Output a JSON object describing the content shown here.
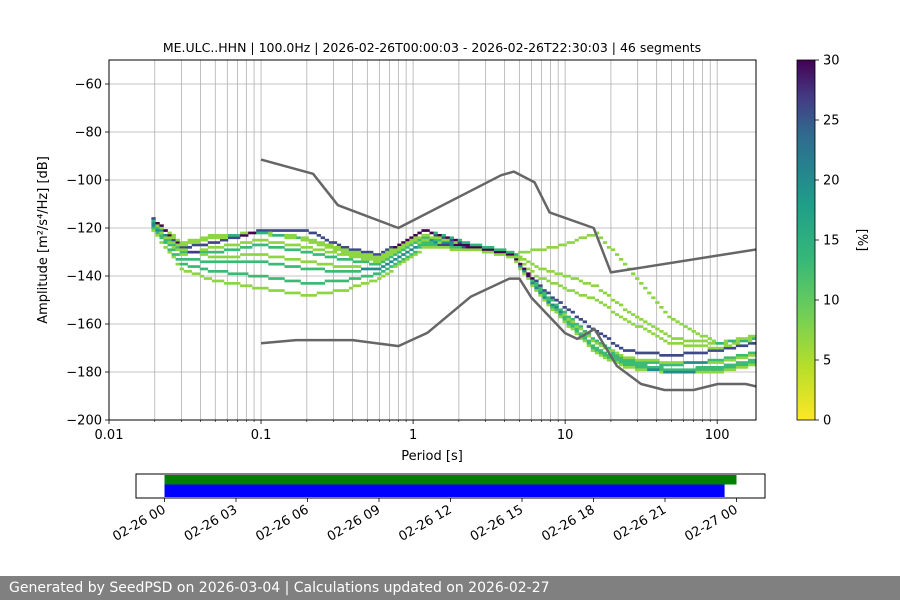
{
  "chart_data": {
    "type": "heatmap",
    "title": "ME.ULC..HHN | 100.0Hz | 2026-02-26T00:00:03 - 2026-02-26T22:30:03 | 46 segments",
    "xlabel": "Period [s]",
    "ylabel": "Amplitude [m²/s⁴/Hz] [dB]",
    "xscale": "log",
    "xlim": [
      0.01,
      180
    ],
    "ylim": [
      -200,
      -50
    ],
    "x_ticks": [
      0.01,
      0.1,
      1,
      10,
      100
    ],
    "x_tick_labels": [
      "0.01",
      "0.1",
      "1",
      "10",
      "100"
    ],
    "y_ticks": [
      -200,
      -180,
      -160,
      -140,
      -120,
      -100,
      -80,
      -60
    ],
    "y_tick_labels": [
      "−200",
      "−180",
      "−160",
      "−140",
      "−120",
      "−100",
      "−80",
      "−60"
    ],
    "grid": true,
    "colormap": "viridis_r",
    "colorbar": {
      "label": "[%]",
      "range": [
        0,
        30
      ],
      "ticks": [
        0,
        5,
        10,
        15,
        20,
        25,
        30
      ]
    },
    "noise_models": [
      {
        "name": "NHNM",
        "color": "#666666",
        "points": [
          [
            0.1,
            -91.5
          ],
          [
            0.22,
            -97.4
          ],
          [
            0.32,
            -110.5
          ],
          [
            0.8,
            -120
          ],
          [
            3.8,
            -98
          ],
          [
            4.6,
            -96.5
          ],
          [
            6.3,
            -101
          ],
          [
            7.9,
            -113.5
          ],
          [
            15.4,
            -120
          ],
          [
            20,
            -138.5
          ],
          [
            354.8,
            -126
          ]
        ]
      },
      {
        "name": "NLNM",
        "color": "#666666",
        "points": [
          [
            0.1,
            -168
          ],
          [
            0.17,
            -166.7
          ],
          [
            0.4,
            -166.7
          ],
          [
            0.8,
            -169.2
          ],
          [
            1.24,
            -163.7
          ],
          [
            2.4,
            -148.6
          ],
          [
            4.3,
            -141.1
          ],
          [
            5,
            -141.1
          ],
          [
            6,
            -149
          ],
          [
            10,
            -163.8
          ],
          [
            12,
            -166.2
          ],
          [
            15.6,
            -162.1
          ],
          [
            21.9,
            -177.5
          ],
          [
            31.6,
            -185
          ],
          [
            45,
            -187.5
          ],
          [
            70,
            -187.5
          ],
          [
            101,
            -185
          ],
          [
            154,
            -185
          ],
          [
            180,
            -186
          ]
        ]
      }
    ],
    "psd_curves": [
      {
        "weight": 0.26,
        "points": [
          [
            0.019,
            -115
          ],
          [
            0.03,
            -128
          ],
          [
            0.05,
            -126
          ],
          [
            0.1,
            -121
          ],
          [
            0.2,
            -121
          ],
          [
            0.35,
            -128
          ],
          [
            0.6,
            -131
          ],
          [
            1.2,
            -121
          ],
          [
            2.5,
            -128
          ],
          [
            4.5,
            -131
          ],
          [
            7,
            -145
          ],
          [
            11,
            -155
          ],
          [
            16,
            -163
          ],
          [
            25,
            -171
          ],
          [
            50,
            -173
          ],
          [
            100,
            -171
          ],
          [
            180,
            -168
          ]
        ]
      },
      {
        "weight": 0.13,
        "points": [
          [
            0.019,
            -117
          ],
          [
            0.03,
            -130
          ],
          [
            0.05,
            -130
          ],
          [
            0.1,
            -127
          ],
          [
            0.2,
            -130
          ],
          [
            0.35,
            -133
          ],
          [
            0.6,
            -135
          ],
          [
            1.2,
            -124
          ],
          [
            2.5,
            -128
          ],
          [
            4.5,
            -131
          ],
          [
            7,
            -146
          ],
          [
            11,
            -158
          ],
          [
            16,
            -167
          ],
          [
            25,
            -175
          ],
          [
            50,
            -177
          ],
          [
            100,
            -175
          ],
          [
            180,
            -172
          ]
        ]
      },
      {
        "weight": 0.13,
        "points": [
          [
            0.019,
            -118
          ],
          [
            0.03,
            -133
          ],
          [
            0.05,
            -134
          ],
          [
            0.1,
            -134
          ],
          [
            0.2,
            -137
          ],
          [
            0.35,
            -138
          ],
          [
            0.6,
            -137
          ],
          [
            1.2,
            -126
          ],
          [
            2.5,
            -128
          ],
          [
            4.5,
            -131
          ],
          [
            7,
            -147
          ],
          [
            11,
            -160
          ],
          [
            16,
            -170
          ],
          [
            25,
            -176
          ],
          [
            50,
            -179
          ],
          [
            100,
            -178
          ],
          [
            180,
            -175
          ]
        ]
      },
      {
        "weight": 0.13,
        "points": [
          [
            0.019,
            -119
          ],
          [
            0.03,
            -135
          ],
          [
            0.05,
            -138
          ],
          [
            0.1,
            -140
          ],
          [
            0.2,
            -143
          ],
          [
            0.35,
            -142
          ],
          [
            0.6,
            -139
          ],
          [
            1.2,
            -127
          ],
          [
            2.5,
            -128
          ],
          [
            4.5,
            -131
          ],
          [
            7,
            -148
          ],
          [
            11,
            -161
          ],
          [
            16,
            -171
          ],
          [
            25,
            -177
          ],
          [
            50,
            -180
          ],
          [
            100,
            -179
          ],
          [
            180,
            -176
          ]
        ]
      },
      {
        "weight": 0.07,
        "points": [
          [
            0.019,
            -120
          ],
          [
            0.03,
            -137
          ],
          [
            0.05,
            -142
          ],
          [
            0.1,
            -145
          ],
          [
            0.2,
            -148
          ],
          [
            0.35,
            -146
          ],
          [
            0.6,
            -141
          ],
          [
            1.2,
            -128
          ],
          [
            2.5,
            -129
          ],
          [
            4.5,
            -132
          ],
          [
            7,
            -149
          ],
          [
            11,
            -162
          ],
          [
            16,
            -172
          ],
          [
            25,
            -178
          ],
          [
            50,
            -180
          ],
          [
            100,
            -180
          ],
          [
            180,
            -177
          ]
        ]
      },
      {
        "weight": 0.07,
        "points": [
          [
            0.019,
            -116
          ],
          [
            0.03,
            -127
          ],
          [
            0.05,
            -124
          ],
          [
            0.1,
            -122
          ],
          [
            0.2,
            -125
          ],
          [
            0.35,
            -130
          ],
          [
            0.6,
            -133
          ],
          [
            1.2,
            -121
          ],
          [
            2.5,
            -127
          ],
          [
            4.5,
            -130
          ],
          [
            6.5,
            -140
          ],
          [
            10,
            -145
          ],
          [
            16,
            -150
          ],
          [
            25,
            -158
          ],
          [
            50,
            -168
          ],
          [
            100,
            -170
          ],
          [
            180,
            -166
          ]
        ]
      },
      {
        "weight": 0.07,
        "points": [
          [
            0.019,
            -116
          ],
          [
            0.03,
            -126
          ],
          [
            0.05,
            -123
          ],
          [
            0.1,
            -122
          ],
          [
            0.2,
            -124
          ],
          [
            0.35,
            -129
          ],
          [
            0.6,
            -132
          ],
          [
            1.2,
            -121
          ],
          [
            2.5,
            -127
          ],
          [
            4.5,
            -130
          ],
          [
            6.5,
            -136
          ],
          [
            10,
            -140
          ],
          [
            16,
            -144
          ],
          [
            25,
            -154
          ],
          [
            50,
            -166
          ],
          [
            100,
            -168
          ],
          [
            180,
            -165
          ]
        ]
      },
      {
        "weight": 0.07,
        "points": [
          [
            0.019,
            -117
          ],
          [
            0.03,
            -129
          ],
          [
            0.05,
            -132
          ],
          [
            0.1,
            -131
          ],
          [
            0.2,
            -134
          ],
          [
            0.35,
            -136
          ],
          [
            0.6,
            -137
          ],
          [
            1.2,
            -125
          ],
          [
            2.5,
            -128
          ],
          [
            4.5,
            -131
          ],
          [
            10,
            -127
          ],
          [
            16,
            -122
          ],
          [
            25,
            -135
          ],
          [
            50,
            -158
          ],
          [
            100,
            -168
          ],
          [
            180,
            -166
          ]
        ]
      },
      {
        "weight": 0.07,
        "points": [
          [
            0.019,
            -118
          ],
          [
            0.03,
            -131
          ],
          [
            0.05,
            -128
          ],
          [
            0.1,
            -125
          ],
          [
            0.2,
            -128
          ],
          [
            0.35,
            -131
          ],
          [
            0.6,
            -134
          ],
          [
            1.2,
            -123
          ],
          [
            2.5,
            -128
          ],
          [
            4.5,
            -131
          ],
          [
            7,
            -148
          ],
          [
            11,
            -159
          ],
          [
            16,
            -168
          ],
          [
            25,
            -174
          ],
          [
            50,
            -176
          ],
          [
            100,
            -176
          ],
          [
            180,
            -173
          ]
        ]
      }
    ]
  },
  "timeline": {
    "x_ticks": [
      "02-26 00",
      "02-26 03",
      "02-26 06",
      "02-26 09",
      "02-26 12",
      "02-26 15",
      "02-26 18",
      "02-26 21",
      "02-27 00"
    ],
    "bars": [
      {
        "color": "#008000",
        "start_hour": 0,
        "end_hour": 24
      },
      {
        "color": "#0000ff",
        "start_hour": 0,
        "end_hour": 23.5
      }
    ]
  },
  "footer": "Generated by SeedPSD on 2026-03-04 | Calculations updated on 2026-02-27"
}
